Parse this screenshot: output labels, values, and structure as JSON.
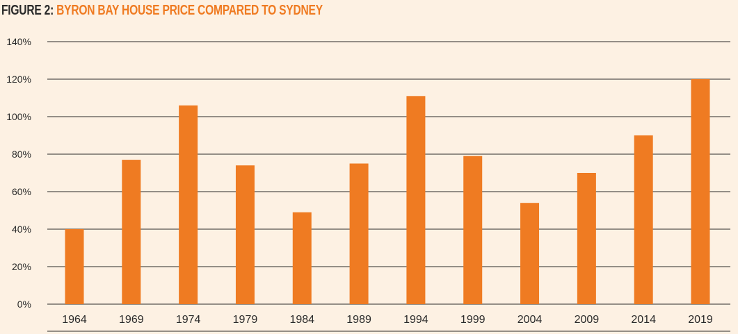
{
  "figure": {
    "title_prefix": "FIGURE 2:",
    "title_main": "BYRON BAY HOUSE PRICE COMPARED TO SYDNEY"
  },
  "colors": {
    "background": "#fdf1e3",
    "bar": "#ef7b22",
    "title_accent": "#ef7b22",
    "text": "#2a2a2a",
    "gridline": "#2a2a2a"
  },
  "chart_data": {
    "type": "bar",
    "title": "BYRON BAY HOUSE PRICE COMPARED TO SYDNEY",
    "categories": [
      "1964",
      "1969",
      "1974",
      "1979",
      "1984",
      "1989",
      "1994",
      "1999",
      "2004",
      "2009",
      "2014",
      "2019"
    ],
    "values": [
      40,
      77,
      106,
      74,
      49,
      75,
      111,
      79,
      54,
      70,
      90,
      120
    ],
    "xlabel": "",
    "ylabel": "",
    "ylim": [
      0,
      140
    ],
    "yticks": [
      0,
      20,
      40,
      60,
      80,
      100,
      120,
      140
    ],
    "ytick_labels": [
      "0%",
      "20%",
      "40%",
      "60%",
      "80%",
      "100%",
      "120%",
      "140%"
    ],
    "grid": true,
    "legend": "none"
  }
}
